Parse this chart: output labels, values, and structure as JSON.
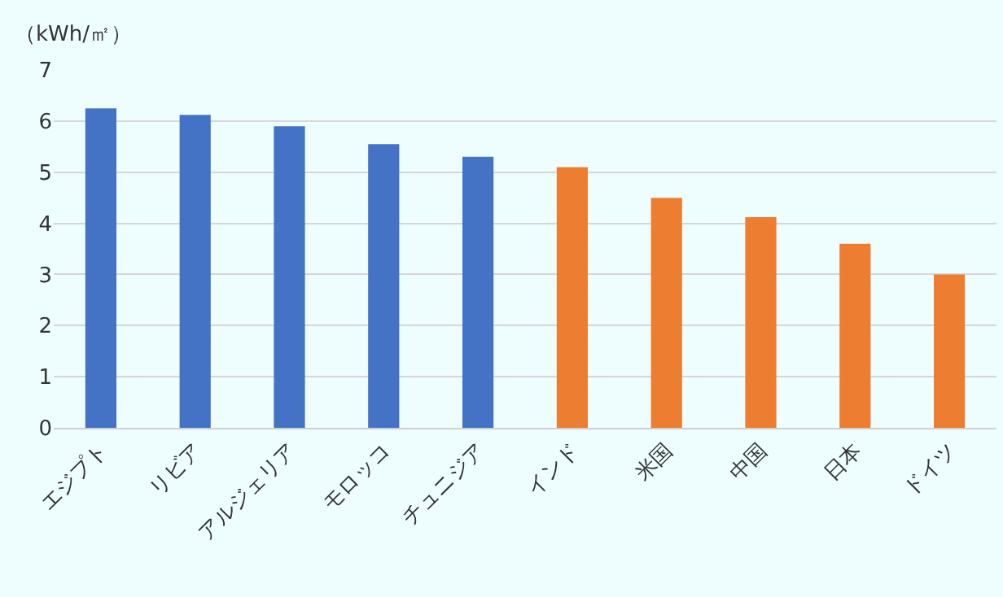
{
  "chart_data": {
    "type": "bar",
    "ylabel": "（kWh/㎡）",
    "categories": [
      "エジプト",
      "リビア",
      "アルジェリア",
      "モロッコ",
      "チュニジア",
      "インド",
      "米国",
      "中国",
      "日本",
      "ドイツ"
    ],
    "values": [
      6.25,
      6.12,
      5.9,
      5.55,
      5.3,
      5.1,
      4.5,
      4.12,
      3.6,
      3.0
    ],
    "colors": [
      "#4472c4",
      "#4472c4",
      "#4472c4",
      "#4472c4",
      "#4472c4",
      "#ed7d31",
      "#ed7d31",
      "#ed7d31",
      "#ed7d31",
      "#ed7d31"
    ],
    "ylim": [
      0,
      7
    ],
    "yticks": [
      0,
      1,
      2,
      3,
      4,
      5,
      6,
      7
    ],
    "grid": "y",
    "legend": false
  }
}
